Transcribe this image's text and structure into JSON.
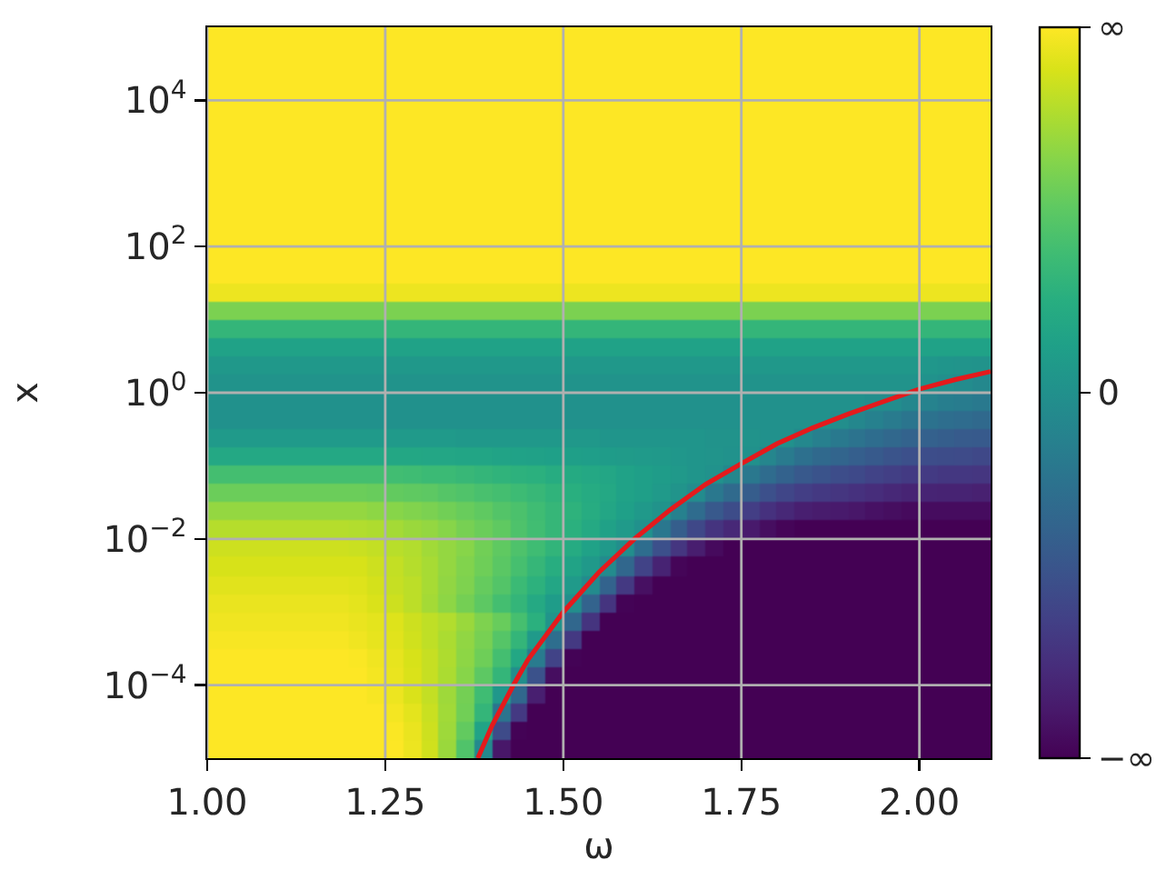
{
  "chart_data": {
    "type": "heatmap",
    "xlabel": "ω",
    "ylabel": "x",
    "log": "y",
    "grid": true,
    "xlim": [
      1,
      2.1
    ],
    "xticks": [
      {
        "value": 1,
        "label": "1.00"
      },
      1.25,
      {
        "value": 1.5,
        "label": "1.50"
      },
      1.75,
      {
        "value": 2,
        "label": "2.00"
      }
    ],
    "ylim": [
      1e-05,
      100000
    ],
    "yticks": [
      {
        "value": 0.0001,
        "label": "10$^{−4}$"
      },
      {
        "value": 0.01,
        "label": "10$^{−2}$"
      },
      {
        "value": 1,
        "label": "10$^{0}$"
      },
      {
        "value": 100,
        "label": "10$^{2}$"
      },
      {
        "value": 10000,
        "label": "10$^{4}$"
      }
    ],
    "clim": [
      -1,
      1
    ],
    "cticks": [
      {
        "value": -1,
        "label": "−∞"
      },
      0,
      {
        "value": 1,
        "label": "∞"
      }
    ],
    "x": [
      1.0125,
      1.0375,
      1.0625,
      1.0875,
      1.1125,
      1.1375,
      1.1625,
      1.1875,
      1.2125,
      1.2375,
      1.2625,
      1.2875,
      1.3125,
      1.3375,
      1.3625,
      1.3875,
      1.4125,
      1.4375,
      1.4625,
      1.4875,
      1.5125,
      1.5375,
      1.5625,
      1.5875,
      1.6125,
      1.6375,
      1.6625,
      1.6875,
      1.7125,
      1.7375,
      1.7625,
      1.7875,
      1.8125,
      1.8375,
      1.8625,
      1.8875,
      1.9125,
      1.9375,
      1.9625,
      1.9875,
      2.0125,
      2.0375,
      2.0625,
      2.0875
    ],
    "cells": [
      [
        1,
        1,
        1,
        1,
        1,
        1,
        1,
        1,
        1,
        1,
        1,
        1,
        1,
        1,
        1,
        1,
        1,
        1,
        1,
        1,
        1,
        1,
        1,
        1,
        1,
        1,
        1,
        1,
        1,
        1,
        1,
        1,
        1,
        1,
        1,
        1,
        1,
        1,
        1,
        1,
        1,
        1,
        1,
        1
      ],
      [
        1,
        1,
        1,
        1,
        1,
        1,
        1,
        1,
        1,
        1,
        1,
        1,
        1,
        1,
        1,
        1,
        1,
        1,
        1,
        1,
        1,
        1,
        1,
        1,
        1,
        1,
        1,
        1,
        1,
        1,
        1,
        1,
        1,
        1,
        1,
        1,
        1,
        1,
        1,
        1,
        1,
        1,
        1,
        1
      ],
      [
        1,
        1,
        1,
        1,
        1,
        1,
        1,
        1,
        1,
        1,
        1,
        1,
        1,
        1,
        1,
        1,
        1,
        1,
        1,
        1,
        1,
        1,
        1,
        1,
        1,
        1,
        1,
        1,
        1,
        1,
        1,
        1,
        1,
        1,
        1,
        1,
        1,
        1,
        1,
        1,
        1,
        1,
        1,
        1
      ],
      [
        1,
        1,
        1,
        1,
        1,
        1,
        1,
        1,
        1,
        1,
        1,
        1,
        1,
        1,
        1,
        1,
        1,
        1,
        1,
        1,
        1,
        1,
        1,
        1,
        1,
        1,
        1,
        1,
        1,
        1,
        1,
        1,
        1,
        1,
        1,
        1,
        1,
        1,
        1,
        1,
        1,
        1,
        1,
        1
      ],
      [
        1,
        1,
        1,
        1,
        1,
        1,
        1,
        1,
        1,
        1,
        1,
        1,
        1,
        1,
        1,
        1,
        1,
        1,
        1,
        1,
        1,
        1,
        1,
        1,
        1,
        1,
        1,
        1,
        1,
        1,
        1,
        1,
        1,
        1,
        1,
        1,
        1,
        1,
        1,
        1,
        1,
        1,
        1,
        1
      ],
      [
        1,
        1,
        1,
        1,
        1,
        1,
        1,
        1,
        1,
        1,
        1,
        1,
        1,
        1,
        1,
        1,
        1,
        1,
        1,
        1,
        1,
        1,
        1,
        1,
        1,
        1,
        1,
        1,
        1,
        1,
        1,
        1,
        1,
        1,
        1,
        1,
        1,
        1,
        1,
        1,
        1,
        1,
        1,
        1
      ],
      [
        1,
        1,
        1,
        1,
        1,
        1,
        1,
        1,
        1,
        1,
        1,
        1,
        1,
        1,
        1,
        1,
        1,
        1,
        1,
        1,
        1,
        1,
        1,
        1,
        1,
        1,
        1,
        1,
        1,
        1,
        1,
        1,
        1,
        1,
        1,
        1,
        1,
        1,
        1,
        1,
        1,
        1,
        1,
        1
      ],
      [
        1,
        1,
        1,
        1,
        1,
        1,
        1,
        1,
        1,
        1,
        1,
        1,
        1,
        1,
        1,
        1,
        1,
        1,
        1,
        1,
        1,
        1,
        1,
        1,
        1,
        1,
        1,
        1,
        1,
        1,
        1,
        1,
        1,
        1,
        1,
        1,
        1,
        1,
        1,
        1,
        1,
        1,
        1,
        1
      ],
      [
        1,
        1,
        1,
        1,
        1,
        1,
        1,
        1,
        1,
        1,
        1,
        1,
        1,
        1,
        1,
        1,
        1,
        1,
        1,
        1,
        1,
        1,
        1,
        1,
        1,
        1,
        1,
        1,
        1,
        1,
        1,
        1,
        1,
        1,
        1,
        1,
        1,
        1,
        1,
        1,
        1,
        1,
        1,
        1
      ],
      [
        1,
        1,
        1,
        1,
        1,
        1,
        1,
        1,
        1,
        1,
        1,
        1,
        1,
        1,
        1,
        1,
        1,
        1,
        1,
        1,
        1,
        1,
        1,
        1,
        1,
        1,
        1,
        1,
        1,
        1,
        1,
        1,
        1,
        1,
        1,
        1,
        1,
        1,
        1,
        1,
        1,
        1,
        1,
        1
      ],
      [
        1,
        1,
        1,
        1,
        1,
        1,
        1,
        1,
        1,
        1,
        1,
        1,
        1,
        1,
        1,
        1,
        1,
        1,
        1,
        1,
        1,
        1,
        1,
        1,
        1,
        1,
        1,
        1,
        1,
        1,
        1,
        1,
        1,
        1,
        1,
        1,
        1,
        1,
        1,
        1,
        1,
        1,
        1,
        1
      ],
      [
        1,
        1,
        1,
        1,
        1,
        1,
        1,
        1,
        1,
        1,
        1,
        1,
        1,
        1,
        1,
        1,
        1,
        1,
        1,
        1,
        1,
        1,
        1,
        1,
        1,
        1,
        1,
        1,
        1,
        1,
        1,
        1,
        1,
        1,
        1,
        1,
        1,
        1,
        1,
        1,
        1,
        1,
        1,
        1
      ],
      [
        1,
        1,
        1,
        1,
        1,
        1,
        1,
        1,
        1,
        1,
        1,
        1,
        1,
        1,
        1,
        1,
        1,
        1,
        1,
        1,
        1,
        1,
        1,
        1,
        1,
        1,
        1,
        1,
        1,
        1,
        1,
        1,
        1,
        1,
        1,
        1,
        1,
        1,
        1,
        1,
        1,
        1,
        1,
        1
      ],
      [
        1,
        1,
        1,
        1,
        1,
        1,
        1,
        1,
        1,
        1,
        1,
        1,
        1,
        1,
        1,
        1,
        1,
        1,
        1,
        1,
        1,
        1,
        1,
        1,
        1,
        1,
        1,
        1,
        1,
        1,
        1,
        1,
        1,
        1,
        1,
        1,
        1,
        1,
        1,
        1,
        1,
        1,
        1,
        1
      ],
      [
        0.95,
        0.95,
        0.95,
        0.95,
        0.95,
        0.95,
        0.95,
        0.95,
        0.95,
        0.95,
        0.95,
        0.95,
        0.95,
        0.95,
        0.95,
        0.95,
        0.95,
        0.95,
        0.95,
        0.95,
        0.95,
        0.95,
        0.95,
        0.95,
        0.95,
        0.95,
        0.95,
        0.95,
        0.95,
        0.95,
        0.95,
        0.95,
        0.95,
        0.95,
        0.95,
        0.95,
        0.95,
        0.95,
        0.95,
        0.95,
        0.95,
        0.95,
        0.95,
        0.95
      ],
      [
        0.6,
        0.6,
        0.6,
        0.6,
        0.6,
        0.6,
        0.6,
        0.6,
        0.6,
        0.6,
        0.6,
        0.6,
        0.6,
        0.6,
        0.6,
        0.6,
        0.6,
        0.6,
        0.6,
        0.6,
        0.6,
        0.6,
        0.6,
        0.6,
        0.6,
        0.6,
        0.6,
        0.6,
        0.6,
        0.6,
        0.6,
        0.6,
        0.6,
        0.6,
        0.6,
        0.6,
        0.6,
        0.6,
        0.6,
        0.6,
        0.6,
        0.6,
        0.6,
        0.6
      ],
      [
        0.32,
        0.32,
        0.32,
        0.32,
        0.32,
        0.32,
        0.32,
        0.32,
        0.32,
        0.32,
        0.32,
        0.32,
        0.32,
        0.32,
        0.32,
        0.32,
        0.32,
        0.32,
        0.32,
        0.32,
        0.32,
        0.32,
        0.32,
        0.32,
        0.32,
        0.32,
        0.32,
        0.32,
        0.32,
        0.32,
        0.32,
        0.32,
        0.32,
        0.32,
        0.32,
        0.32,
        0.32,
        0.32,
        0.32,
        0.32,
        0.32,
        0.32,
        0.32,
        0.32
      ],
      [
        0.15,
        0.15,
        0.15,
        0.15,
        0.15,
        0.15,
        0.15,
        0.15,
        0.15,
        0.15,
        0.15,
        0.15,
        0.15,
        0.15,
        0.15,
        0.15,
        0.15,
        0.15,
        0.15,
        0.15,
        0.15,
        0.15,
        0.15,
        0.15,
        0.15,
        0.15,
        0.15,
        0.15,
        0.15,
        0.15,
        0.15,
        0.15,
        0.15,
        0.15,
        0.15,
        0.15,
        0.15,
        0.15,
        0.15,
        0.15,
        0.15,
        0.15,
        0.15,
        0.15
      ],
      [
        0.06,
        0.06,
        0.06,
        0.06,
        0.06,
        0.06,
        0.06,
        0.06,
        0.06,
        0.06,
        0.06,
        0.06,
        0.06,
        0.06,
        0.06,
        0.06,
        0.06,
        0.06,
        0.06,
        0.06,
        0.06,
        0.06,
        0.06,
        0.06,
        0.06,
        0.06,
        0.06,
        0.06,
        0.06,
        0.06,
        0.06,
        0.06,
        0.06,
        0.06,
        0.06,
        0.06,
        0.06,
        0.06,
        0.06,
        0.06,
        0.05,
        0.04,
        0.03,
        0.02
      ],
      [
        0.02,
        0.02,
        0.02,
        0.02,
        0.02,
        0.02,
        0.02,
        0.02,
        0.02,
        0.02,
        0.02,
        0.02,
        0.02,
        0.02,
        0.02,
        0.02,
        0.02,
        0.02,
        0.02,
        0.02,
        0.02,
        0.02,
        0.02,
        0.02,
        0.02,
        0.02,
        0.02,
        0.02,
        0.02,
        0.02,
        0.02,
        0.02,
        0.02,
        0.02,
        0.02,
        0.02,
        0.02,
        0.02,
        0.02,
        0.02,
        0.01,
        -0.01,
        -0.04,
        -0.07
      ],
      [
        0,
        0,
        0,
        0,
        0,
        0,
        0,
        0,
        0,
        0,
        0,
        0,
        0,
        0,
        0,
        0,
        0,
        0,
        0,
        0,
        0,
        0,
        0,
        0,
        0,
        0,
        0,
        0,
        0,
        0,
        0,
        0,
        0,
        0,
        0,
        0,
        0,
        -0.02,
        -0.03,
        -0.08,
        -0.11,
        -0.15,
        -0.17,
        -0.19
      ],
      [
        0,
        0,
        0,
        0,
        0,
        0,
        0,
        0,
        0,
        0,
        0,
        0,
        0,
        0,
        0,
        0,
        0,
        0,
        0,
        0,
        0,
        0,
        0,
        0,
        0,
        0,
        0,
        0,
        0,
        0,
        0,
        0,
        0,
        0,
        0,
        -0.02,
        -0.08,
        -0.13,
        -0.18,
        -0.22,
        -0.25,
        -0.28,
        -0.3,
        -0.32
      ],
      [
        0.08,
        0.08,
        0.08,
        0.08,
        0.08,
        0.08,
        0.08,
        0.08,
        0.08,
        0.08,
        0.08,
        0.08,
        0.08,
        0.08,
        0.06,
        0.06,
        0.06,
        0.06,
        0.06,
        0.06,
        0.06,
        0.06,
        0.04,
        0.04,
        0.04,
        0.04,
        0.04,
        0.04,
        0.02,
        0.02,
        0.02,
        0,
        0,
        -0.07,
        -0.14,
        -0.19,
        -0.24,
        -0.29,
        -0.33,
        -0.37,
        -0.39,
        -0.41,
        -0.43,
        -0.44
      ],
      [
        0.2,
        0.2,
        0.2,
        0.2,
        0.2,
        0.2,
        0.2,
        0.2,
        0.2,
        0.2,
        0.19,
        0.19,
        0.18,
        0.18,
        0.17,
        0.17,
        0.16,
        0.15,
        0.14,
        0.13,
        0.12,
        0.11,
        0.1,
        0.09,
        0.08,
        0.07,
        0.05,
        0.04,
        0.03,
        0.01,
        0,
        -0.09,
        -0.18,
        -0.26,
        -0.32,
        -0.36,
        -0.4,
        -0.44,
        -0.48,
        -0.51,
        -0.53,
        -0.54,
        -0.55,
        -0.57
      ],
      [
        0.4,
        0.4,
        0.4,
        0.4,
        0.4,
        0.4,
        0.4,
        0.4,
        0.4,
        0.4,
        0.39,
        0.38,
        0.36,
        0.36,
        0.34,
        0.32,
        0.3,
        0.28,
        0.27,
        0.24,
        0.22,
        0.2,
        0.18,
        0.15,
        0.12,
        0.1,
        0.07,
        0.04,
        0.01,
        -0.08,
        -0.2,
        -0.3,
        -0.38,
        -0.45,
        -0.49,
        -0.53,
        -0.56,
        -0.6,
        -0.63,
        -0.66,
        -0.66,
        -0.68,
        -0.68,
        -0.69
      ],
      [
        0.55,
        0.55,
        0.55,
        0.55,
        0.55,
        0.55,
        0.55,
        0.55,
        0.55,
        0.54,
        0.52,
        0.51,
        0.5,
        0.47,
        0.45,
        0.42,
        0.4,
        0.37,
        0.34,
        0.3,
        0.26,
        0.23,
        0.2,
        0.15,
        0.12,
        0.08,
        0.03,
        -0.04,
        -0.2,
        -0.31,
        -0.42,
        -0.51,
        -0.58,
        -0.64,
        -0.67,
        -0.69,
        -0.72,
        -0.75,
        -0.78,
        -0.8,
        -0.8,
        -0.81,
        -0.81,
        -0.82
      ],
      [
        0.68,
        0.68,
        0.68,
        0.68,
        0.68,
        0.68,
        0.68,
        0.68,
        0.68,
        0.66,
        0.64,
        0.62,
        0.6,
        0.57,
        0.54,
        0.51,
        0.46,
        0.43,
        0.38,
        0.33,
        0.29,
        0.24,
        0.18,
        0.13,
        0.07,
        0.02,
        -0.13,
        -0.3,
        -0.45,
        -0.54,
        -0.64,
        -0.72,
        -0.78,
        -0.83,
        -0.85,
        -0.86,
        -0.88,
        -0.91,
        -0.93,
        -0.95,
        -0.94,
        -0.94,
        -0.94,
        -0.94
      ],
      [
        0.78,
        0.78,
        0.78,
        0.78,
        0.78,
        0.78,
        0.78,
        0.78,
        0.77,
        0.76,
        0.73,
        0.7,
        0.68,
        0.64,
        0.59,
        0.55,
        0.51,
        0.44,
        0.39,
        0.33,
        0.27,
        0.21,
        0.14,
        0.08,
        0,
        -0.21,
        -0.41,
        -0.57,
        -0.7,
        -0.78,
        -0.86,
        -0.93,
        -0.98,
        -1,
        -1,
        -1,
        -1,
        -1,
        -1,
        -1,
        -1,
        -1,
        -1,
        -1
      ],
      [
        0.85,
        0.85,
        0.85,
        0.85,
        0.85,
        0.85,
        0.85,
        0.85,
        0.84,
        0.82,
        0.79,
        0.77,
        0.72,
        0.68,
        0.64,
        0.57,
        0.51,
        0.44,
        0.38,
        0.31,
        0.23,
        0.15,
        0.07,
        -0.02,
        -0.29,
        -0.51,
        -0.69,
        -0.84,
        -0.95,
        -1,
        -1,
        -1,
        -1,
        -1,
        -1,
        -1,
        -1,
        -1,
        -1,
        -1,
        -1,
        -1,
        -1,
        -1
      ],
      [
        0.88,
        0.88,
        0.88,
        0.88,
        0.88,
        0.88,
        0.88,
        0.88,
        0.88,
        0.85,
        0.82,
        0.78,
        0.74,
        0.68,
        0.62,
        0.56,
        0.49,
        0.41,
        0.33,
        0.25,
        0.16,
        0.07,
        -0.05,
        -0.34,
        -0.6,
        -0.81,
        -0.98,
        -1,
        -1,
        -1,
        -1,
        -1,
        -1,
        -1,
        -1,
        -1,
        -1,
        -1,
        -1,
        -1,
        -1,
        -1,
        -1,
        -1
      ],
      [
        0.91,
        0.91,
        0.91,
        0.91,
        0.91,
        0.91,
        0.91,
        0.91,
        0.9,
        0.87,
        0.83,
        0.8,
        0.74,
        0.67,
        0.61,
        0.53,
        0.46,
        0.36,
        0.28,
        0.18,
        0.08,
        -0.05,
        -0.37,
        -0.67,
        -0.92,
        -1,
        -1,
        -1,
        -1,
        -1,
        -1,
        -1,
        -1,
        -1,
        -1,
        -1,
        -1,
        -1,
        -1,
        -1,
        -1,
        -1,
        -1,
        -1
      ],
      [
        0.94,
        0.94,
        0.94,
        0.94,
        0.94,
        0.94,
        0.94,
        0.94,
        0.92,
        0.89,
        0.85,
        0.8,
        0.73,
        0.66,
        0.58,
        0.5,
        0.4,
        0.32,
        0.21,
        0.1,
        -0.02,
        -0.37,
        -0.7,
        -0.99,
        -1,
        -1,
        -1,
        -1,
        -1,
        -1,
        -1,
        -1,
        -1,
        -1,
        -1,
        -1,
        -1,
        -1,
        -1,
        -1,
        -1,
        -1,
        -1,
        -1
      ],
      [
        0.96,
        0.96,
        0.96,
        0.96,
        0.96,
        0.96,
        0.96,
        0.96,
        0.94,
        0.92,
        0.9,
        0.85,
        0.81,
        0.77,
        0.7,
        0.61,
        0.54,
        0.41,
        0.27,
        0.03,
        -0.34,
        -0.7,
        -1,
        -1,
        -1,
        -1,
        -1,
        -1,
        -1,
        -1,
        -1,
        -1,
        -1,
        -1,
        -1,
        -1,
        -1,
        -1,
        -1,
        -1,
        -1,
        -1,
        -1,
        -1
      ],
      [
        0.98,
        0.98,
        0.98,
        0.98,
        0.98,
        0.98,
        0.98,
        0.98,
        0.96,
        0.93,
        0.91,
        0.86,
        0.81,
        0.75,
        0.67,
        0.59,
        0.47,
        0.32,
        0.08,
        -0.28,
        -0.67,
        -1,
        -1,
        -1,
        -1,
        -1,
        -1,
        -1,
        -1,
        -1,
        -1,
        -1,
        -1,
        -1,
        -1,
        -1,
        -1,
        -1,
        -1,
        -1,
        -1,
        -1,
        -1,
        -1
      ],
      [
        1,
        1,
        1,
        1,
        1,
        1,
        1,
        1,
        0.99,
        0.96,
        0.93,
        0.88,
        0.83,
        0.76,
        0.66,
        0.56,
        0.4,
        0.19,
        -0.18,
        -0.6,
        -0.99,
        -1,
        -1,
        -1,
        -1,
        -1,
        -1,
        -1,
        -1,
        -1,
        -1,
        -1,
        -1,
        -1,
        -1,
        -1,
        -1,
        -1,
        -1,
        -1,
        -1,
        -1,
        -1,
        -1
      ],
      [
        1,
        1,
        1,
        1,
        1,
        1,
        1,
        1,
        1,
        0.97,
        0.94,
        0.89,
        0.83,
        0.75,
        0.64,
        0.5,
        0.32,
        -0.02,
        -0.5,
        -0.93,
        -1,
        -1,
        -1,
        -1,
        -1,
        -1,
        -1,
        -1,
        -1,
        -1,
        -1,
        -1,
        -1,
        -1,
        -1,
        -1,
        -1,
        -1,
        -1,
        -1,
        -1,
        -1,
        -1,
        -1
      ],
      [
        1,
        1,
        1,
        1,
        1,
        1,
        1,
        1,
        1,
        0.98,
        0.95,
        0.89,
        0.82,
        0.71,
        0.58,
        0.38,
        0.05,
        -0.34,
        -0.83,
        -1,
        -1,
        -1,
        -1,
        -1,
        -1,
        -1,
        -1,
        -1,
        -1,
        -1,
        -1,
        -1,
        -1,
        -1,
        -1,
        -1,
        -1,
        -1,
        -1,
        -1,
        -1,
        -1,
        -1,
        -1
      ],
      [
        1,
        1,
        1,
        1,
        1,
        1,
        1,
        1,
        1,
        1,
        0.97,
        0.92,
        0.84,
        0.72,
        0.57,
        0.32,
        -0.23,
        -0.67,
        -1,
        -1,
        -1,
        -1,
        -1,
        -1,
        -1,
        -1,
        -1,
        -1,
        -1,
        -1,
        -1,
        -1,
        -1,
        -1,
        -1,
        -1,
        -1,
        -1,
        -1,
        -1,
        -1,
        -1,
        -1,
        -1
      ],
      [
        1,
        1,
        1,
        1,
        1,
        1,
        1,
        1,
        1,
        1,
        0.99,
        0.94,
        0.85,
        0.71,
        0.52,
        0.16,
        -0.55,
        -0.99,
        -1,
        -1,
        -1,
        -1,
        -1,
        -1,
        -1,
        -1,
        -1,
        -1,
        -1,
        -1,
        -1,
        -1,
        -1,
        -1,
        -1,
        -1,
        -1,
        -1,
        -1,
        -1,
        -1,
        -1,
        -1,
        -1
      ],
      [
        1,
        1,
        1,
        1,
        1,
        1,
        1,
        1,
        1,
        1,
        1,
        0.95,
        0.86,
        0.7,
        0.45,
        -0.06,
        -0.88,
        -1,
        -1,
        -1,
        -1,
        -1,
        -1,
        -1,
        -1,
        -1,
        -1,
        -1,
        -1,
        -1,
        -1,
        -1,
        -1,
        -1,
        -1,
        -1,
        -1,
        -1,
        -1,
        -1,
        -1,
        -1,
        -1,
        -1
      ]
    ],
    "series": [
      {
        "type": "line",
        "color": "#e41a1c",
        "x": [
          1.38,
          1.4,
          1.43,
          1.45,
          1.5,
          1.55,
          1.6,
          1.65,
          1.7,
          1.75,
          1.8,
          1.85,
          1.9,
          1.95,
          2,
          2.05,
          2.1
        ],
        "values": [
          1e-05,
          2.8e-05,
          0.0001,
          0.00022,
          0.001,
          0.0035,
          0.01,
          0.025,
          0.056,
          0.107,
          0.2,
          0.33,
          0.51,
          0.76,
          1.12,
          1.51,
          1.95
        ]
      }
    ]
  }
}
